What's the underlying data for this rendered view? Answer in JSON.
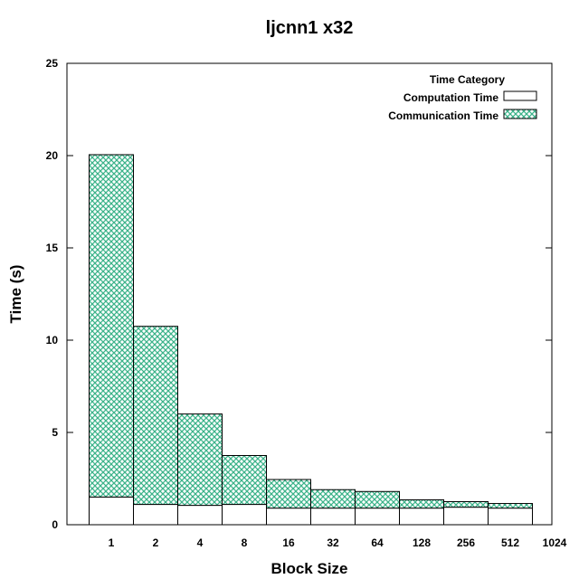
{
  "chart_data": {
    "type": "bar",
    "title": "ljcnn1 x32",
    "xlabel": "Block Size",
    "ylabel": "Time (s)",
    "ylim": [
      0,
      25
    ],
    "y_ticks": [
      "0",
      "5",
      "10",
      "15",
      "20",
      "25"
    ],
    "x_tick_labels": [
      "1",
      "2",
      "4",
      "8",
      "16",
      "32",
      "64",
      "128",
      "256",
      "512",
      "1024"
    ],
    "categories": [
      "1",
      "2",
      "4",
      "8",
      "16",
      "32",
      "64",
      "128",
      "256",
      "512"
    ],
    "stacked": true,
    "series": [
      {
        "name": "Computation Time",
        "color": "#ffffff",
        "values": [
          1.5,
          1.1,
          1.05,
          1.1,
          0.9,
          0.9,
          0.9,
          0.9,
          0.95,
          0.9
        ]
      },
      {
        "name": "Communication Time",
        "color": "#3cb38a",
        "pattern": "crosshatch",
        "values": [
          18.55,
          9.65,
          4.95,
          2.65,
          1.55,
          1.0,
          0.9,
          0.45,
          0.3,
          0.25
        ]
      }
    ],
    "legend": {
      "title": "Time Category",
      "position": "top-right"
    },
    "grid": false
  }
}
